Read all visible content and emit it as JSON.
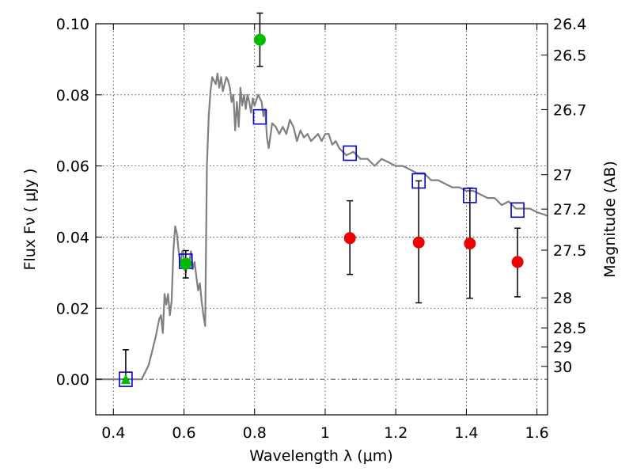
{
  "chart_data": {
    "type": "scatter",
    "xlabel": "Wavelength  λ (μm)",
    "ylabel": "Flux  Fν  ( μJy )",
    "y2label": "Magnitude (AB)",
    "xlim": [
      0.35,
      1.63
    ],
    "ylim": [
      -0.01,
      0.1
    ],
    "x_ticks": [
      0.4,
      0.6,
      0.8,
      1.0,
      1.2,
      1.4,
      1.6
    ],
    "x_tick_labels": [
      "0.4",
      "0.6",
      "0.8",
      "1",
      "1.2",
      "1.4",
      "1.6"
    ],
    "y_ticks": [
      0.0,
      0.02,
      0.04,
      0.06,
      0.08,
      0.1
    ],
    "y_tick_labels": [
      "0.00",
      "0.02",
      "0.04",
      "0.06",
      "0.08",
      "0.10"
    ],
    "y2_ticks": [
      "26.4",
      "26.5",
      "26.7",
      "27",
      "27.2",
      "27.5",
      "28",
      "28.5",
      "29",
      "30"
    ],
    "grid": true,
    "zero_line": true,
    "colors": {
      "model": "#808080",
      "model_points": "#0000cc",
      "detections": "#00bb00",
      "upper_limits": "#ee0000",
      "errorbar": "#000000"
    },
    "series": [
      {
        "kind": "line",
        "x": [
          0.35,
          0.48,
          0.49,
          0.5,
          0.51,
          0.52,
          0.53,
          0.535,
          0.54,
          0.545,
          0.55,
          0.555,
          0.56,
          0.565,
          0.57,
          0.575,
          0.58,
          0.585,
          0.59,
          0.595,
          0.6,
          0.605,
          0.61,
          0.615,
          0.62,
          0.625,
          0.63,
          0.635,
          0.64,
          0.645,
          0.65,
          0.655,
          0.66,
          0.665,
          0.67,
          0.675,
          0.68,
          0.685,
          0.69,
          0.695,
          0.7,
          0.705,
          0.71,
          0.715,
          0.72,
          0.725,
          0.73,
          0.735,
          0.74,
          0.745,
          0.75,
          0.755,
          0.76,
          0.765,
          0.77,
          0.775,
          0.78,
          0.785,
          0.79,
          0.795,
          0.8,
          0.81,
          0.82,
          0.825,
          0.83,
          0.835,
          0.84,
          0.85,
          0.86,
          0.87,
          0.88,
          0.89,
          0.9,
          0.91,
          0.92,
          0.93,
          0.94,
          0.95,
          0.96,
          0.97,
          0.98,
          0.99,
          1.0,
          1.01,
          1.02,
          1.03,
          1.04,
          1.06,
          1.08,
          1.1,
          1.12,
          1.14,
          1.16,
          1.18,
          1.2,
          1.22,
          1.24,
          1.26,
          1.28,
          1.3,
          1.32,
          1.34,
          1.36,
          1.38,
          1.4,
          1.42,
          1.44,
          1.46,
          1.48,
          1.5,
          1.52,
          1.54,
          1.56,
          1.58,
          1.6,
          1.63
        ],
        "y": [
          0.0,
          0.0,
          0.002,
          0.004,
          0.008,
          0.012,
          0.017,
          0.018,
          0.013,
          0.024,
          0.021,
          0.024,
          0.018,
          0.022,
          0.036,
          0.043,
          0.041,
          0.036,
          0.032,
          0.036,
          0.034,
          0.03,
          0.034,
          0.033,
          0.036,
          0.031,
          0.033,
          0.029,
          0.025,
          0.027,
          0.022,
          0.018,
          0.015,
          0.06,
          0.074,
          0.081,
          0.085,
          0.084,
          0.083,
          0.086,
          0.082,
          0.085,
          0.081,
          0.083,
          0.085,
          0.084,
          0.082,
          0.078,
          0.08,
          0.07,
          0.078,
          0.071,
          0.082,
          0.077,
          0.08,
          0.076,
          0.08,
          0.078,
          0.075,
          0.079,
          0.077,
          0.08,
          0.078,
          0.074,
          0.076,
          0.068,
          0.065,
          0.072,
          0.071,
          0.069,
          0.071,
          0.069,
          0.073,
          0.071,
          0.067,
          0.07,
          0.068,
          0.069,
          0.067,
          0.068,
          0.069,
          0.067,
          0.069,
          0.069,
          0.066,
          0.067,
          0.065,
          0.063,
          0.064,
          0.062,
          0.062,
          0.06,
          0.062,
          0.061,
          0.06,
          0.06,
          0.059,
          0.058,
          0.058,
          0.056,
          0.056,
          0.055,
          0.054,
          0.054,
          0.053,
          0.053,
          0.052,
          0.051,
          0.051,
          0.049,
          0.05,
          0.048,
          0.048,
          0.048,
          0.047,
          0.046
        ]
      },
      {
        "kind": "model_points",
        "marker": "square",
        "x": [
          0.435,
          0.605,
          0.815,
          1.07,
          1.265,
          1.41,
          1.545
        ],
        "y": [
          0.0,
          0.0332,
          0.0738,
          0.0636,
          0.0558,
          0.0517,
          0.0476
        ]
      },
      {
        "kind": "detections",
        "marker": "circle",
        "x": [
          0.605,
          0.815
        ],
        "y": [
          0.0325,
          0.0955
        ],
        "yerr_low": [
          0.0285,
          0.088
        ],
        "yerr_high": [
          0.0362,
          0.103
        ]
      },
      {
        "kind": "detection_limit",
        "marker": "triangle",
        "x": [
          0.435
        ],
        "y": [
          0.0
        ],
        "yerr_low": [
          0.0
        ],
        "yerr_high": [
          0.0083
        ]
      },
      {
        "kind": "upper_limits",
        "marker": "circle",
        "x": [
          1.07,
          1.265,
          1.41,
          1.545
        ],
        "y": [
          0.0397,
          0.0385,
          0.0382,
          0.033
        ],
        "yerr_low": [
          0.0295,
          0.0215,
          0.0228,
          0.0232
        ],
        "yerr_high": [
          0.0502,
          0.0558,
          0.0538,
          0.0425
        ]
      }
    ]
  }
}
